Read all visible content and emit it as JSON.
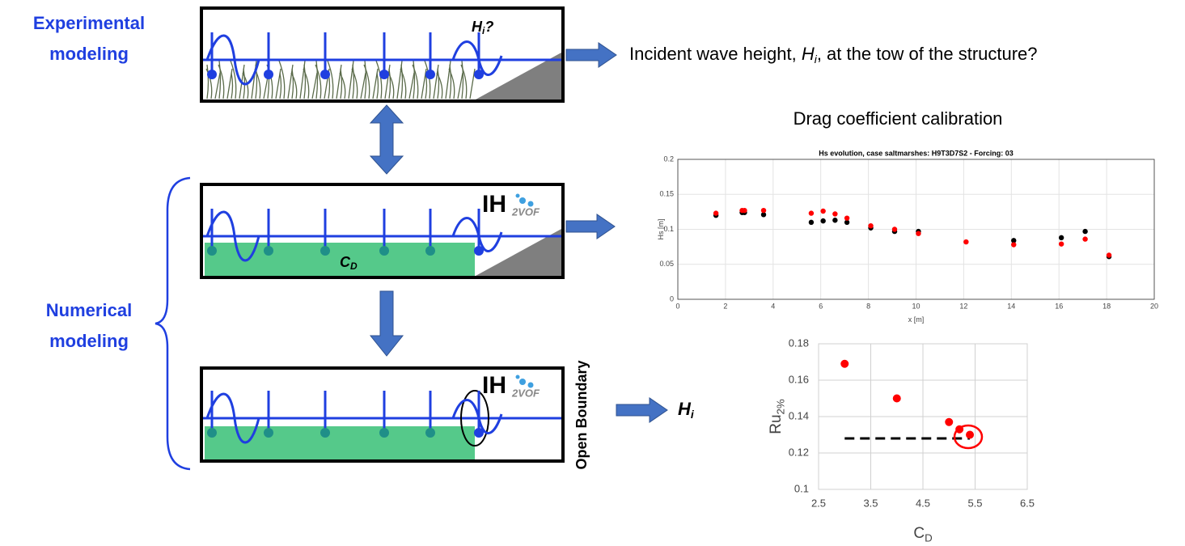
{
  "labels": {
    "experimental": [
      "Experimental",
      "modeling"
    ],
    "numerical": [
      "Numerical",
      "modeling"
    ],
    "question": {
      "before": "Incident wave height, ",
      "symbol": "H",
      "sub": "i",
      "after": ", at the tow of the structure?"
    },
    "probe_target": {
      "symbol": "H",
      "sub": "i",
      "after": "?"
    },
    "drag": {
      "symbol": "C",
      "sub": "D"
    },
    "logo": {
      "main": "IH",
      "sub": "2VOF"
    },
    "open_boundary": "Open Boundary",
    "result": {
      "symbol": "H",
      "sub": "i"
    },
    "calibration_title": "Drag coefficient calibration"
  },
  "chart_data": [
    {
      "type": "scatter",
      "title": "Hs evolution, case saltmarshes: H9T3D7S2 - Forcing: 03",
      "x_label": {
        "text": "x [m]"
      },
      "y_label": {
        "text": "Hs [m]"
      },
      "xlim": [
        0,
        20
      ],
      "xticks": [
        0,
        2,
        4,
        6,
        8,
        10,
        12,
        14,
        16,
        18,
        20
      ],
      "ylim": [
        0,
        0.2
      ],
      "yticks": [
        0,
        0.05,
        0.1,
        0.15,
        0.2
      ],
      "grid": true,
      "series": [
        {
          "color": "#000000",
          "x": [
            1.6,
            2.7,
            2.8,
            3.6,
            5.6,
            6.1,
            6.6,
            7.1,
            8.1,
            9.1,
            10.1,
            14.1,
            16.1,
            17.1,
            18.1
          ],
          "values": [
            0.12,
            0.124,
            0.124,
            0.121,
            0.11,
            0.112,
            0.113,
            0.11,
            0.102,
            0.097,
            0.097,
            0.084,
            0.088,
            0.097,
            0.061
          ]
        },
        {
          "color": "#ff0000",
          "x": [
            1.6,
            2.7,
            2.8,
            3.6,
            5.6,
            6.1,
            6.6,
            7.1,
            8.1,
            9.1,
            10.1,
            12.1,
            14.1,
            16.1,
            17.1,
            18.1
          ],
          "values": [
            0.123,
            0.127,
            0.127,
            0.127,
            0.123,
            0.126,
            0.122,
            0.116,
            0.105,
            0.1,
            0.094,
            0.082,
            0.078,
            0.079,
            0.086,
            0.063
          ]
        }
      ]
    },
    {
      "type": "scatter",
      "x_label": {
        "text": "C",
        "sub": "D"
      },
      "y_label": {
        "text": "Ru",
        "sub": "2%"
      },
      "xlim": [
        2.5,
        6.5
      ],
      "xticks": [
        2.5,
        3.5,
        4.5,
        5.5,
        6.5
      ],
      "ylim": [
        0.1,
        0.18
      ],
      "yticks": [
        0.1,
        0.12,
        0.14,
        0.16,
        0.18
      ],
      "grid": true,
      "series": [
        {
          "color": "#ff0000",
          "x": [
            3,
            4,
            5,
            5.2,
            5.4
          ],
          "values": [
            0.169,
            0.15,
            0.137,
            0.133,
            0.13
          ]
        }
      ],
      "reference": {
        "x": [
          3,
          5.4
        ],
        "y": 0.128,
        "color": "#000000"
      }
    }
  ]
}
